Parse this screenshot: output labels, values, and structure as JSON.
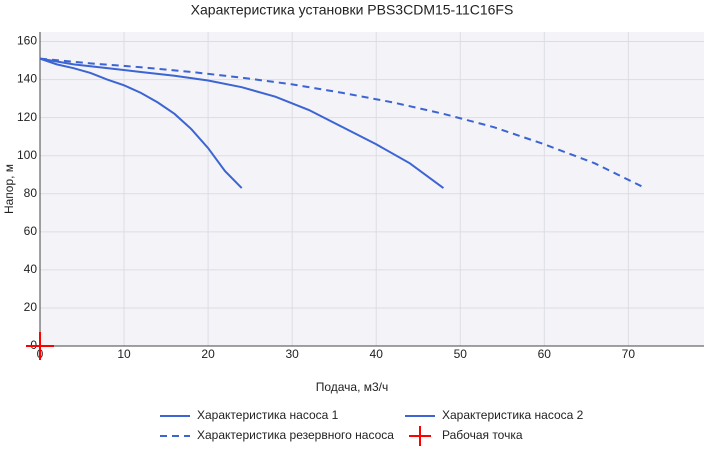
{
  "chart_data": {
    "type": "line",
    "title": "Характеристика установки PBS3CDM15-11C16FS",
    "x_label": "Подача, м3/ч",
    "y_label": "Напор, м",
    "xlim": [
      0,
      79
    ],
    "ylim": [
      0,
      165
    ],
    "xticks": [
      0,
      10,
      20,
      30,
      40,
      50,
      60,
      70
    ],
    "yticks": [
      0,
      20,
      40,
      60,
      80,
      100,
      120,
      140,
      160
    ],
    "grid": true,
    "series": [
      {
        "name": "Характеристика насоса 1",
        "color": "#3c64d2",
        "dash": false,
        "x": [
          0,
          2,
          4,
          6,
          8,
          10,
          12,
          14,
          16,
          18,
          20,
          22,
          24
        ],
        "values": [
          151,
          148,
          146,
          143.5,
          140,
          137,
          133,
          128,
          122,
          114,
          104,
          92,
          83
        ]
      },
      {
        "name": "Характеристика насоса 2",
        "color": "#3c64d2",
        "dash": false,
        "x": [
          0,
          4,
          8,
          12,
          16,
          20,
          24,
          28,
          32,
          36,
          40,
          44,
          48
        ],
        "values": [
          151,
          148,
          146,
          144,
          142,
          139.5,
          136,
          131,
          124,
          115,
          106,
          96,
          83
        ]
      },
      {
        "name": "Характеристика резервного насоса",
        "color": "#3c64d2",
        "dash": true,
        "x": [
          0,
          6,
          12,
          18,
          24,
          30,
          36,
          42,
          48,
          54,
          60,
          66,
          72
        ],
        "values": [
          151,
          148.5,
          146.5,
          144,
          141,
          137.5,
          133,
          128,
          122,
          115,
          106,
          96,
          83
        ]
      },
      {
        "name": "Рабочая точка",
        "color": "#ff0000",
        "marker": "cross",
        "x": [
          0
        ],
        "values": [
          0
        ]
      }
    ]
  }
}
